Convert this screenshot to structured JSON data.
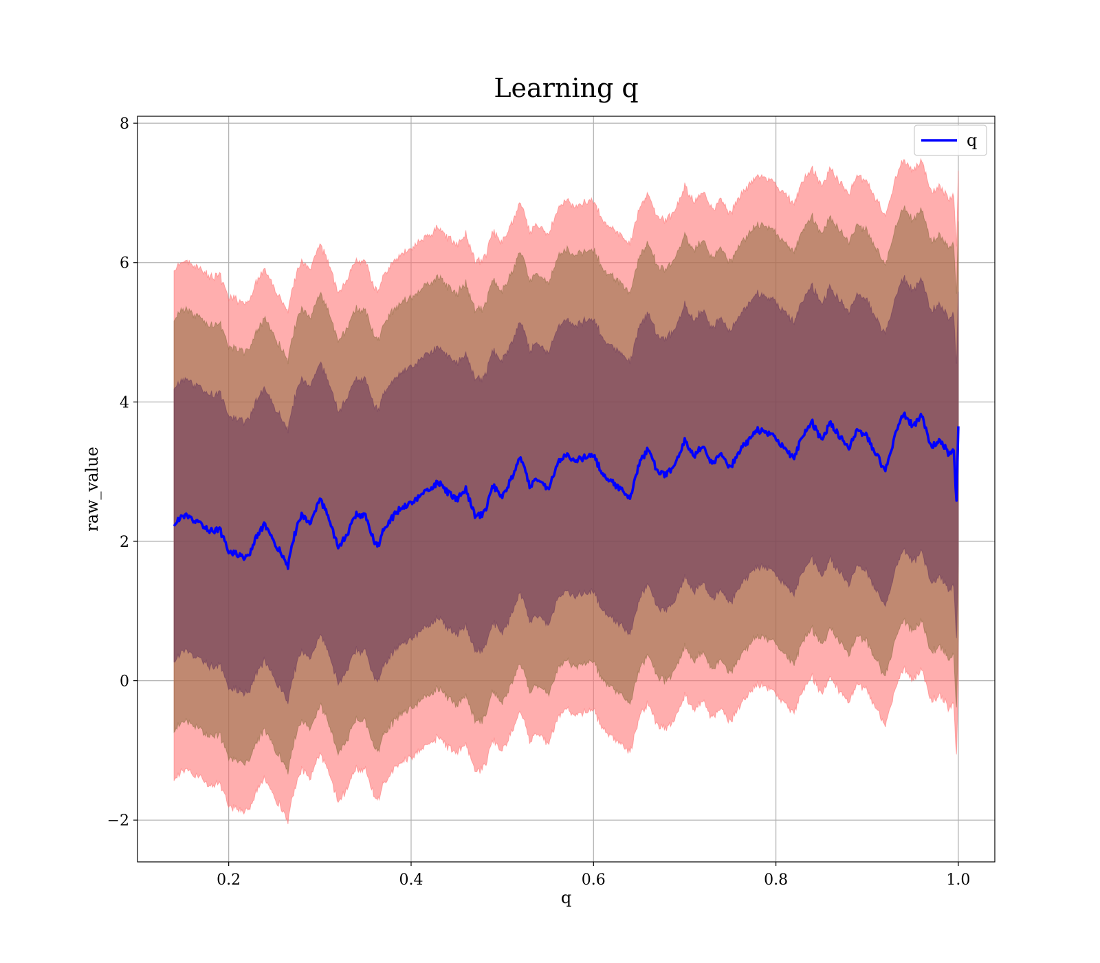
{
  "chart_data": {
    "type": "line",
    "title": "Learning q",
    "xlabel": "q",
    "ylabel": "raw_value",
    "xlim": [
      0.1,
      1.04
    ],
    "ylim": [
      -2.6,
      8.1
    ],
    "x_ticks": [
      0.2,
      0.4,
      0.6,
      0.8,
      1.0
    ],
    "x_tick_labels": [
      "0.2",
      "0.4",
      "0.6",
      "0.8",
      "1.0"
    ],
    "y_ticks": [
      -2,
      0,
      2,
      4,
      6,
      8
    ],
    "y_tick_labels": [
      "−2",
      "0",
      "2",
      "4",
      "6",
      "8"
    ],
    "grid": true,
    "legend": {
      "position": "top-right",
      "entries": [
        "q"
      ]
    },
    "colors": {
      "line": "#0000ff",
      "band_outer": "#ff6b6b",
      "band_middle": "#8c6b3f",
      "band_inner": "#6b3a5c",
      "grid": "#b0b0b0"
    },
    "bands": [
      {
        "level": "outer",
        "half_width": 3.65
      },
      {
        "level": "middle",
        "half_width": 2.95
      },
      {
        "level": "inner",
        "half_width": 1.95
      }
    ],
    "series": [
      {
        "name": "q",
        "x": [
          0.14,
          0.15,
          0.16,
          0.17,
          0.18,
          0.19,
          0.2,
          0.21,
          0.22,
          0.23,
          0.24,
          0.25,
          0.26,
          0.265,
          0.27,
          0.28,
          0.29,
          0.3,
          0.31,
          0.32,
          0.33,
          0.34,
          0.35,
          0.36,
          0.365,
          0.37,
          0.38,
          0.39,
          0.4,
          0.41,
          0.42,
          0.43,
          0.44,
          0.45,
          0.46,
          0.47,
          0.48,
          0.49,
          0.5,
          0.51,
          0.52,
          0.53,
          0.54,
          0.55,
          0.56,
          0.57,
          0.58,
          0.59,
          0.6,
          0.61,
          0.62,
          0.63,
          0.64,
          0.65,
          0.66,
          0.67,
          0.68,
          0.69,
          0.7,
          0.71,
          0.72,
          0.73,
          0.74,
          0.75,
          0.76,
          0.77,
          0.78,
          0.79,
          0.8,
          0.81,
          0.82,
          0.83,
          0.84,
          0.85,
          0.86,
          0.87,
          0.88,
          0.89,
          0.9,
          0.91,
          0.92,
          0.93,
          0.94,
          0.95,
          0.96,
          0.97,
          0.98,
          0.99,
          0.995,
          0.998,
          1.0
        ],
        "y": [
          2.22,
          2.38,
          2.3,
          2.25,
          2.15,
          2.18,
          1.85,
          1.82,
          1.75,
          2.05,
          2.25,
          1.95,
          1.8,
          1.62,
          2.0,
          2.4,
          2.25,
          2.6,
          2.35,
          1.9,
          2.1,
          2.4,
          2.35,
          2.0,
          1.95,
          2.2,
          2.35,
          2.5,
          2.55,
          2.65,
          2.75,
          2.85,
          2.7,
          2.6,
          2.75,
          2.35,
          2.4,
          2.8,
          2.65,
          2.9,
          3.2,
          2.8,
          2.9,
          2.75,
          3.1,
          3.25,
          3.15,
          3.2,
          3.25,
          2.95,
          2.85,
          2.75,
          2.6,
          3.1,
          3.35,
          3.0,
          2.95,
          3.1,
          3.45,
          3.2,
          3.4,
          3.1,
          3.25,
          3.05,
          3.3,
          3.45,
          3.6,
          3.55,
          3.5,
          3.3,
          3.2,
          3.55,
          3.7,
          3.45,
          3.7,
          3.5,
          3.35,
          3.6,
          3.5,
          3.25,
          3.0,
          3.5,
          3.85,
          3.65,
          3.8,
          3.35,
          3.45,
          3.25,
          3.3,
          2.55,
          3.65
        ]
      }
    ]
  }
}
